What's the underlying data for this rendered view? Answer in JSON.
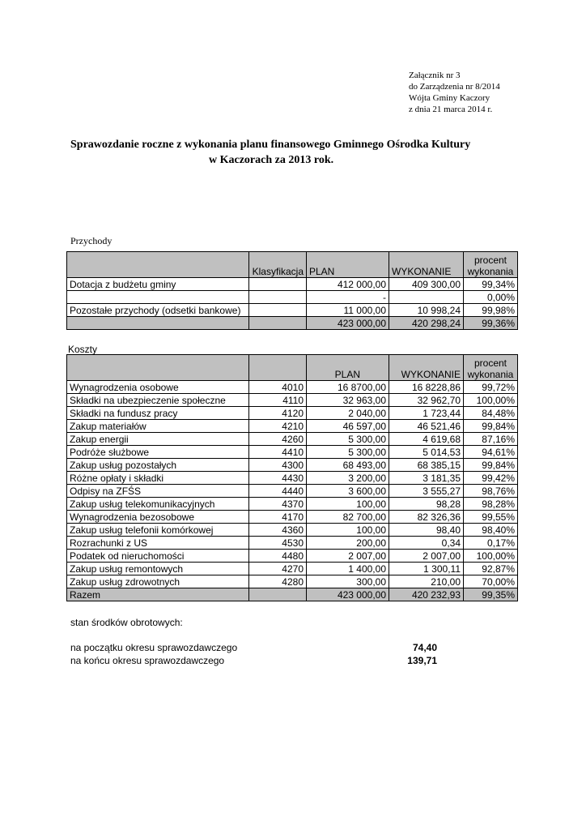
{
  "header": {
    "lines": [
      "Załącznik nr 3",
      "do Zarządzenia nr 8/2014",
      "Wójta Gminy Kaczory",
      "z dnia 21 marca 2014 r."
    ]
  },
  "title": {
    "lines": [
      "Sprawozdanie roczne z wykonania planu finansowego Gminnego Ośrodka Kultury",
      "w  Kaczorach za 2013 rok."
    ]
  },
  "income": {
    "label": "Przychody",
    "header": {
      "code": "Klasyfikacja",
      "plan": "PLAN",
      "executed": "WYKONANIE",
      "percent": "procent\nwykonania"
    },
    "rows": [
      {
        "name": "Dotacja z budżetu gminy",
        "plan": "412 000,00",
        "executed": "409 300,00",
        "percent": "99,34%"
      },
      {
        "plan": "-",
        "percent": "0,00%"
      },
      {
        "name": "Pozostałe przychody (odsetki bankowe)",
        "plan": "11 000,00",
        "executed": "10 998,24",
        "percent": "99,98%"
      }
    ],
    "total": {
      "plan": "423 000,00",
      "executed": "420 298,24",
      "percent": "99,36%"
    }
  },
  "costs": {
    "label": "Koszty",
    "header": {
      "plan": "PLAN",
      "executed": "WYKONANIE",
      "percent": "procent\nwykonania"
    },
    "rows": [
      {
        "name": "Wynagrodzenia osobowe",
        "code": "4010",
        "plan": "16 8700,00",
        "executed": "16  8228,86",
        "percent": "99,72%"
      },
      {
        "name": "Składki na ubezpieczenie społeczne",
        "code": "4110",
        "plan": "32 963,00",
        "executed": "32 962,70",
        "percent": "100,00%"
      },
      {
        "name": "Składki na fundusz pracy",
        "code": "4120",
        "plan": "2 040,00",
        "executed": "1 723,44",
        "percent": "84,48%"
      },
      {
        "name": "Zakup materiałów",
        "code": "4210",
        "plan": "46 597,00",
        "executed": "46 521,46",
        "percent": "99,84%"
      },
      {
        "name": "Zakup energii",
        "code": "4260",
        "plan": "5 300,00",
        "executed": "4 619,68",
        "percent": "87,16%"
      },
      {
        "name": "Podróże służbowe",
        "code": "4410",
        "plan": "5 300,00",
        "executed": "5 014,53",
        "percent": "94,61%"
      },
      {
        "name": "Zakup usług pozostałych",
        "code": "4300",
        "plan": "68 493,00",
        "executed": "68 385,15",
        "percent": "99,84%"
      },
      {
        "name": "Różne opłaty i składki",
        "code": "4430",
        "plan": "3 200,00",
        "executed": "3 181,35",
        "percent": "99,42%"
      },
      {
        "name": "Odpisy na ZFŚS",
        "code": "4440",
        "plan": "3 600,00",
        "executed": "3 555,27",
        "percent": "98,76%"
      },
      {
        "name": "Zakup usług telekomunikacyjnych",
        "code": "4370",
        "plan": "100,00",
        "executed": "98,28",
        "percent": "98,28%"
      },
      {
        "name": "Wynagrodzenia bezosobowe",
        "code": "4170",
        "plan": "82 700,00",
        "executed": "82 326,36",
        "percent": "99,55%"
      },
      {
        "name": "Zakup usług telefonii komórkowej",
        "code": "4360",
        "plan": "100,00",
        "executed": "98,40",
        "percent": "98,40%"
      },
      {
        "name": "Rozrachunki z US",
        "code": "4530",
        "plan": "200,00",
        "executed": "0,34",
        "percent": "0,17%"
      },
      {
        "name": "Podatek od nieruchomości",
        "code": "4480",
        "plan": "2 007,00",
        "executed": "2 007,00",
        "percent": "100,00%"
      },
      {
        "name": "Zakup usług remontowych",
        "code": "4270",
        "plan": "1 400,00",
        "executed": "1 300,11",
        "percent": "92,87%"
      },
      {
        "name": "Zakup usług zdrowotnych",
        "code": "4280",
        "plan": "300,00",
        "executed": "210,00",
        "percent": "70,00%"
      }
    ],
    "total": {
      "name": "Razem",
      "plan": "423 000,00",
      "executed": "420 232,93",
      "percent": "99,35%"
    }
  },
  "funds": {
    "label": "stan środków obrotowych:",
    "rows": [
      {
        "name": "na początku okresu sprawozdawczego",
        "value": "74,40"
      },
      {
        "name": "na końcu okresu sprawozdawczego",
        "value": "139,71"
      }
    ]
  }
}
